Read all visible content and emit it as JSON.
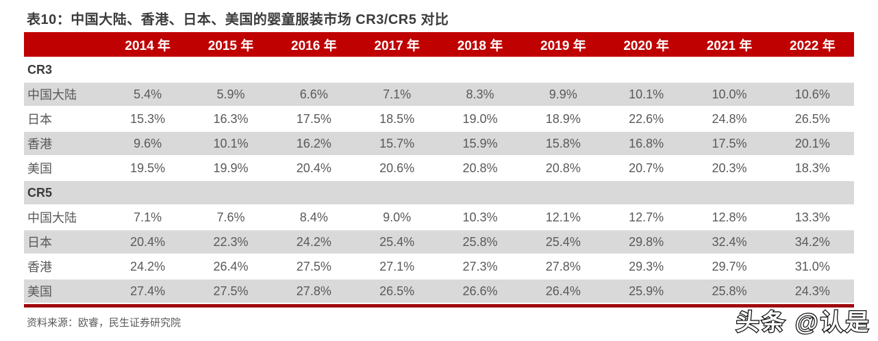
{
  "page": {
    "title": "表10：中国大陆、香港、日本、美国的婴童服装市场 CR3/CR5 对比"
  },
  "chart_data": {
    "type": "table",
    "title": "表10：中国大陆、香港、日本、美国的婴童服装市场 CR3/CR5 对比",
    "columns": [
      "2014 年",
      "2015 年",
      "2016 年",
      "2017 年",
      "2018 年",
      "2019 年",
      "2020 年",
      "2021 年",
      "2022 年"
    ],
    "sections": [
      {
        "label": "CR3",
        "rows": [
          {
            "label": "中国大陆",
            "values": [
              "5.4%",
              "5.9%",
              "6.6%",
              "7.1%",
              "8.3%",
              "9.9%",
              "10.1%",
              "10.0%",
              "10.6%"
            ]
          },
          {
            "label": "日本",
            "values": [
              "15.3%",
              "16.3%",
              "17.5%",
              "18.5%",
              "19.0%",
              "18.9%",
              "22.6%",
              "24.8%",
              "26.5%"
            ]
          },
          {
            "label": "香港",
            "values": [
              "9.6%",
              "10.1%",
              "16.2%",
              "15.7%",
              "15.9%",
              "15.8%",
              "16.8%",
              "17.5%",
              "20.1%"
            ]
          },
          {
            "label": "美国",
            "values": [
              "19.5%",
              "19.9%",
              "20.4%",
              "20.6%",
              "20.8%",
              "20.8%",
              "20.7%",
              "20.3%",
              "18.3%"
            ]
          }
        ]
      },
      {
        "label": "CR5",
        "rows": [
          {
            "label": "中国大陆",
            "values": [
              "7.1%",
              "7.6%",
              "8.4%",
              "9.0%",
              "10.3%",
              "12.1%",
              "12.7%",
              "12.8%",
              "13.3%"
            ]
          },
          {
            "label": "日本",
            "values": [
              "20.4%",
              "22.3%",
              "24.2%",
              "25.4%",
              "25.8%",
              "25.4%",
              "29.8%",
              "32.4%",
              "34.2%"
            ]
          },
          {
            "label": "香港",
            "values": [
              "24.2%",
              "26.4%",
              "27.5%",
              "27.1%",
              "27.3%",
              "27.8%",
              "29.3%",
              "29.7%",
              "31.0%"
            ]
          },
          {
            "label": "美国",
            "values": [
              "27.4%",
              "27.5%",
              "27.8%",
              "26.5%",
              "26.6%",
              "26.4%",
              "25.9%",
              "25.8%",
              "24.3%"
            ]
          }
        ]
      }
    ]
  },
  "footer": {
    "source": "资料来源：欧睿，民生证券研究院"
  },
  "watermark": {
    "text": "头条 @认是"
  },
  "colors": {
    "header_red": "#c00101",
    "divider_red": "#a0080c",
    "stripe_gray": "#d9d9d9",
    "text_gray": "#595959",
    "title_gray": "#3b3b3b"
  }
}
